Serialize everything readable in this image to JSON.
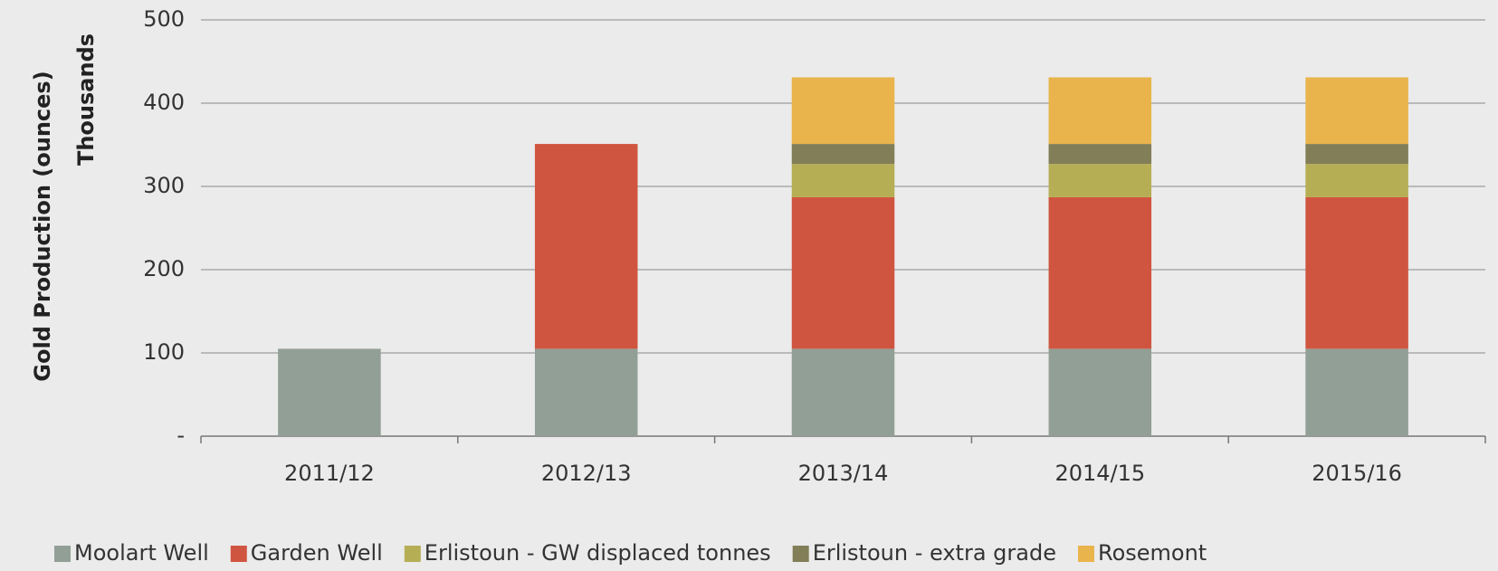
{
  "chart_data": {
    "type": "stacked_bar",
    "y_label": "Gold Production (ounces)",
    "y_unit_label": "Thousands",
    "categories": [
      "2011/12",
      "2012/13",
      "2013/14",
      "2014/15",
      "2015/16"
    ],
    "series": [
      {
        "name": "Moolart Well",
        "color": "#929f96",
        "values": [
          105,
          105,
          105,
          105,
          105
        ]
      },
      {
        "name": "Garden Well",
        "color": "#d05540",
        "values": [
          null,
          246,
          182,
          182,
          182
        ]
      },
      {
        "name": "Erlistoun - GW displaced tonnes",
        "color": "#b6ae55",
        "values": [
          null,
          null,
          40,
          40,
          40
        ]
      },
      {
        "name": "Erlistoun - extra grade",
        "color": "#827e57",
        "values": [
          null,
          null,
          24,
          24,
          24
        ]
      },
      {
        "name": "Rosemont",
        "color": "#e9b44c",
        "values": [
          null,
          null,
          80,
          80,
          80
        ]
      }
    ],
    "ylim": [
      0,
      500
    ],
    "yticks": [
      {
        "value": 0,
        "label": "-"
      },
      100,
      200,
      300,
      400,
      500
    ],
    "grid": true,
    "legend": "bottom"
  }
}
